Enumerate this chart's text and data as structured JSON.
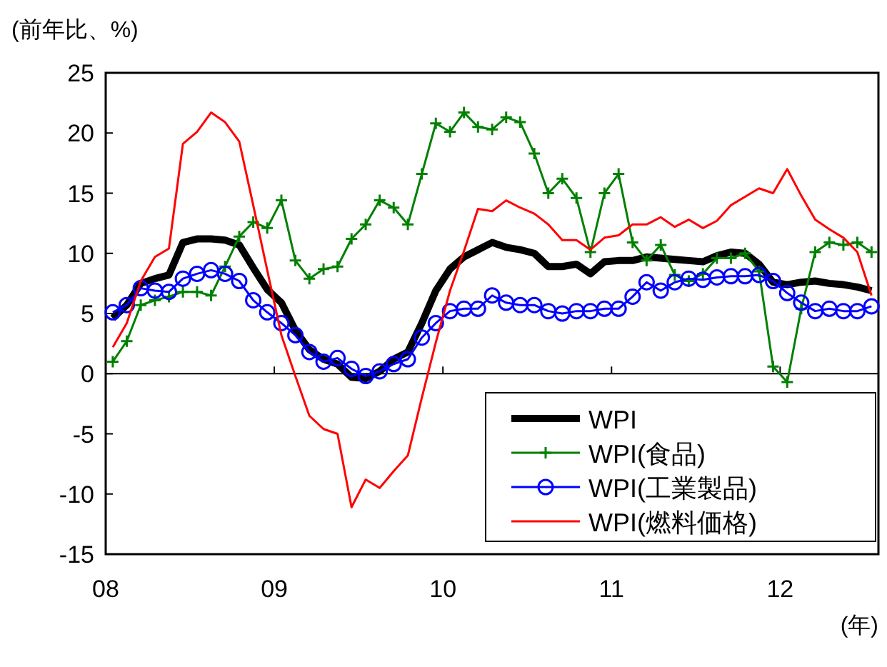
{
  "chart_data": {
    "type": "line",
    "ylabel": "(前年比、%)",
    "xlabel": "(年)",
    "x": [
      2008.042,
      2008.125,
      2008.208,
      2008.292,
      2008.375,
      2008.458,
      2008.542,
      2008.625,
      2008.708,
      2008.792,
      2008.875,
      2008.958,
      2009.042,
      2009.125,
      2009.208,
      2009.292,
      2009.375,
      2009.458,
      2009.542,
      2009.625,
      2009.708,
      2009.792,
      2009.875,
      2009.958,
      2010.042,
      2010.125,
      2010.208,
      2010.292,
      2010.375,
      2010.458,
      2010.542,
      2010.625,
      2010.708,
      2010.792,
      2010.875,
      2010.958,
      2011.042,
      2011.125,
      2011.208,
      2011.292,
      2011.375,
      2011.458,
      2011.542,
      2011.625,
      2011.708,
      2011.792,
      2011.875,
      2011.958,
      2012.042,
      2012.125,
      2012.208,
      2012.292,
      2012.375,
      2012.458,
      2012.542
    ],
    "series": [
      {
        "name": "WPI",
        "color": "#000000",
        "marker": "none",
        "values": [
          4.6,
          5.7,
          7.5,
          7.9,
          8.2,
          10.9,
          11.2,
          11.2,
          11.1,
          10.7,
          8.8,
          7.0,
          5.9,
          3.6,
          2.0,
          1.2,
          0.8,
          -0.3,
          -0.4,
          0.2,
          1.2,
          1.8,
          4.2,
          6.9,
          8.7,
          9.7,
          10.3,
          10.9,
          10.5,
          10.3,
          10.0,
          8.9,
          8.9,
          9.1,
          8.3,
          9.3,
          9.4,
          9.4,
          9.7,
          9.6,
          9.5,
          9.4,
          9.3,
          9.8,
          10.1,
          10.0,
          9.1,
          7.6,
          7.4,
          7.6,
          7.7,
          7.5,
          7.4,
          7.2,
          6.9
        ]
      },
      {
        "name": "WPI(食品)",
        "color": "#008000",
        "marker": "cross",
        "values": [
          1.0,
          2.7,
          5.7,
          6.1,
          6.4,
          6.8,
          6.8,
          6.5,
          8.9,
          11.4,
          12.6,
          12.1,
          14.4,
          9.4,
          7.9,
          8.7,
          8.9,
          11.2,
          12.4,
          14.4,
          13.8,
          12.4,
          16.6,
          20.8,
          20.1,
          21.7,
          20.5,
          20.3,
          21.3,
          20.9,
          18.3,
          15.0,
          16.2,
          14.6,
          10.1,
          15.0,
          16.6,
          10.9,
          9.4,
          10.7,
          8.2,
          7.7,
          8.3,
          9.6,
          9.6,
          10.0,
          8.5,
          0.6,
          -0.7,
          5.4,
          10.1,
          10.9,
          10.7,
          10.9,
          10.1
        ]
      },
      {
        "name": "WPI(工業製品)",
        "color": "#0000ff",
        "marker": "circle",
        "values": [
          5.1,
          5.7,
          7.1,
          6.9,
          6.8,
          7.9,
          8.3,
          8.6,
          8.3,
          7.7,
          6.1,
          5.1,
          4.2,
          3.2,
          1.8,
          1.0,
          1.3,
          0.4,
          -0.2,
          0.2,
          0.8,
          1.2,
          3.0,
          4.2,
          5.2,
          5.4,
          5.4,
          6.5,
          5.9,
          5.7,
          5.7,
          5.2,
          5.0,
          5.2,
          5.2,
          5.4,
          5.4,
          6.4,
          7.6,
          6.9,
          7.6,
          7.9,
          7.8,
          8.0,
          8.1,
          8.1,
          8.2,
          7.7,
          6.7,
          5.9,
          5.2,
          5.4,
          5.2,
          5.2,
          5.6
        ]
      },
      {
        "name": "WPI(燃料価格)",
        "color": "#ff0000",
        "marker": "none",
        "values": [
          2.2,
          4.2,
          7.7,
          9.7,
          10.4,
          19.1,
          20.1,
          21.7,
          20.9,
          19.3,
          14.0,
          8.6,
          3.2,
          -0.2,
          -3.5,
          -4.6,
          -5.0,
          -11.1,
          -8.8,
          -9.5,
          -8.1,
          -6.8,
          -2.0,
          2.6,
          6.9,
          10.2,
          13.7,
          13.5,
          14.4,
          13.8,
          13.3,
          12.4,
          11.1,
          11.1,
          10.3,
          11.3,
          11.5,
          12.4,
          12.4,
          13.0,
          12.2,
          12.8,
          12.1,
          12.7,
          14.0,
          14.7,
          15.4,
          15.0,
          17.0,
          14.8,
          12.8,
          12.0,
          11.3,
          10.1,
          6.5
        ]
      }
    ],
    "xlim": [
      2008,
      2012.583
    ],
    "xticks": [
      {
        "value": 2008,
        "label": "08"
      },
      {
        "value": 2009,
        "label": "09"
      },
      {
        "value": 2010,
        "label": "10"
      },
      {
        "value": 2011,
        "label": "11"
      },
      {
        "value": 2012,
        "label": "12"
      }
    ],
    "ylim": [
      -15,
      25
    ],
    "yticks": [
      -15,
      -10,
      -5,
      0,
      5,
      10,
      15,
      20,
      25
    ],
    "ref_lines": [
      {
        "axis": "y",
        "value": 0,
        "color": "#000000"
      }
    ],
    "grid": false,
    "legend": "bottom right"
  }
}
